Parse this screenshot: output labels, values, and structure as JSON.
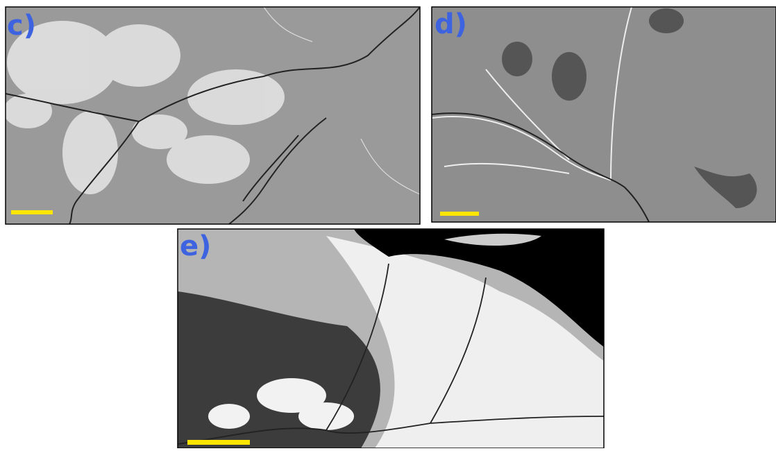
{
  "panels": [
    {
      "label": "c)"
    },
    {
      "label": "d)"
    },
    {
      "label": "e)"
    }
  ]
}
